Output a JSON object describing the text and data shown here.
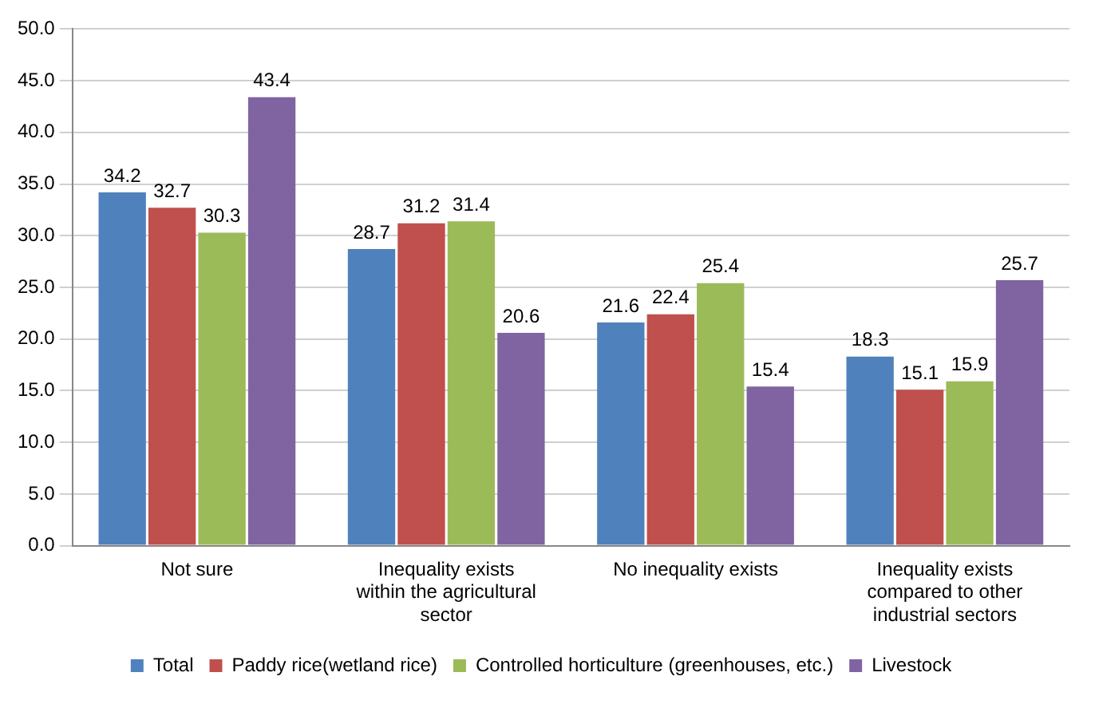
{
  "chart_data": {
    "type": "bar",
    "categories": [
      "Not sure",
      "Inequality exists within the agricultural sector",
      "No inequality exists",
      "Inequality exists compared to other industrial sectors"
    ],
    "series": [
      {
        "name": "Total",
        "color": "#4f81bd",
        "values": [
          34.2,
          28.7,
          21.6,
          18.3
        ]
      },
      {
        "name": "Paddy rice(wetland rice)",
        "color": "#c0504d",
        "values": [
          32.7,
          31.2,
          22.4,
          15.1
        ]
      },
      {
        "name": "Controlled horticulture (greenhouses, etc.)",
        "color": "#9bbb59",
        "values": [
          30.3,
          31.4,
          25.4,
          15.9
        ]
      },
      {
        "name": "Livestock",
        "color": "#8064a2",
        "values": [
          43.4,
          20.6,
          15.4,
          25.7
        ]
      }
    ],
    "ylim": [
      0,
      50
    ],
    "yticks": [
      {
        "value": 0,
        "label": "0.0"
      },
      {
        "value": 5,
        "label": "5.0"
      },
      {
        "value": 10,
        "label": "10.0"
      },
      {
        "value": 15,
        "label": "15.0"
      },
      {
        "value": 20,
        "label": "20.0"
      },
      {
        "value": 25,
        "label": "25.0"
      },
      {
        "value": 30,
        "label": "30.0"
      },
      {
        "value": 35,
        "label": "35.0"
      },
      {
        "value": 40,
        "label": "40.0"
      },
      {
        "value": 45,
        "label": "45.0"
      },
      {
        "value": 50,
        "label": "50.0"
      }
    ],
    "grid": "y",
    "legend": "bottom",
    "data_labels": true
  }
}
